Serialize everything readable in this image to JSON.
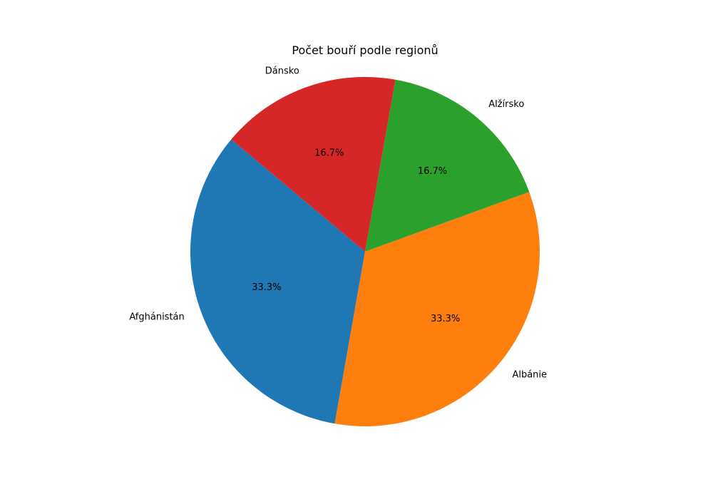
{
  "chart_data": {
    "type": "pie",
    "title": "Počet bouří podle regionů",
    "start_angle_deg": 140,
    "direction": "counterclockwise",
    "slices": [
      {
        "label": "Afghánistán",
        "value": 2,
        "pct_label": "33.3%",
        "color": "#1f77b4"
      },
      {
        "label": "Albánie",
        "value": 2,
        "pct_label": "33.3%",
        "color": "#ff7f0e"
      },
      {
        "label": "Alžírsko",
        "value": 1,
        "pct_label": "16.7%",
        "color": "#2ca02c"
      },
      {
        "label": "Dánsko",
        "value": 1,
        "pct_label": "16.7%",
        "color": "#d62728"
      }
    ]
  }
}
